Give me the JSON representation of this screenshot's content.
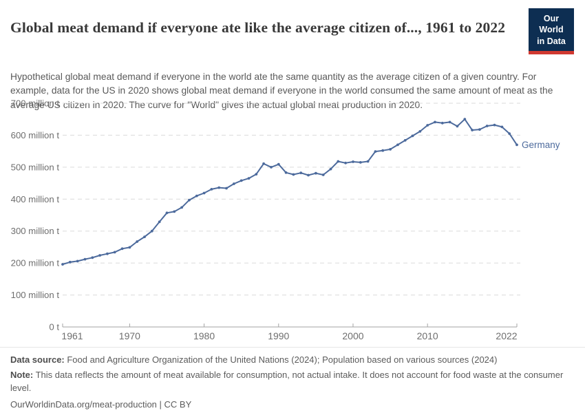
{
  "header": {
    "title": "Global meat demand if everyone ate like the average citizen of..., 1961 to 2022",
    "subtitle": "Hypothetical global meat demand if everyone in the world ate the same quantity as the average citizen of a given country. For example, data for the US in 2020 shows global meat demand if everyone in the world consumed the same amount of meat as the average US citizen in 2020. The curve for \"World\" gives the actual global meat production in 2020.",
    "logo": {
      "line1": "Our World",
      "line2": "in Data",
      "bg_color": "#0d2e52",
      "accent_color": "#d0393180",
      "accent": "#d03931"
    }
  },
  "chart_data": {
    "type": "line",
    "title": "Global meat demand if everyone ate like the average citizen of..., 1961 to 2022",
    "xlabel": "",
    "ylabel": "million t",
    "xlim": [
      1961,
      2022
    ],
    "ylim": [
      0,
      700
    ],
    "grid": "horizontal-dashed",
    "legend_position": "end-of-line",
    "yticks": [
      0,
      100,
      200,
      300,
      400,
      500,
      600,
      700
    ],
    "ytick_labels": [
      "0 t",
      "100 million t",
      "200 million t",
      "300 million t",
      "400 million t",
      "500 million t",
      "600 million t",
      "700 million t"
    ],
    "xticks": [
      1961,
      1970,
      1980,
      1990,
      2000,
      2010,
      2022
    ],
    "x": [
      1961,
      1962,
      1963,
      1964,
      1965,
      1966,
      1967,
      1968,
      1969,
      1970,
      1971,
      1972,
      1973,
      1974,
      1975,
      1976,
      1977,
      1978,
      1979,
      1980,
      1981,
      1982,
      1983,
      1984,
      1985,
      1986,
      1987,
      1988,
      1989,
      1990,
      1991,
      1992,
      1993,
      1994,
      1995,
      1996,
      1997,
      1998,
      1999,
      2000,
      2001,
      2002,
      2003,
      2004,
      2005,
      2006,
      2007,
      2008,
      2009,
      2010,
      2011,
      2012,
      2013,
      2014,
      2015,
      2016,
      2017,
      2018,
      2019,
      2020,
      2021,
      2022
    ],
    "series": [
      {
        "name": "Germany",
        "color": "#4C6A9C",
        "values": [
          196,
          203,
          206,
          212,
          217,
          224,
          229,
          234,
          245,
          249,
          267,
          282,
          300,
          329,
          357,
          361,
          374,
          397,
          410,
          419,
          431,
          436,
          434,
          448,
          458,
          465,
          478,
          511,
          500,
          509,
          483,
          477,
          482,
          475,
          481,
          476,
          494,
          518,
          513,
          517,
          515,
          518,
          549,
          552,
          556,
          570,
          584,
          598,
          612,
          631,
          641,
          638,
          641,
          628,
          650,
          616,
          618,
          629,
          632,
          626,
          605,
          570
        ]
      }
    ],
    "axis_color": "#a3a3a3",
    "gridline_color": "#dadada",
    "tick_label_color": "#6e6e6e"
  },
  "footer": {
    "datasource_label": "Data source:",
    "datasource_text": " Food and Agriculture Organization of the United Nations (2024); Population based on various sources (2024)",
    "note_label": "Note:",
    "note_text": " This data reflects the amount of meat available for consumption, not actual intake. It does not account for food waste at the consumer level.",
    "citation": "OurWorldinData.org/meat-production | CC BY"
  }
}
